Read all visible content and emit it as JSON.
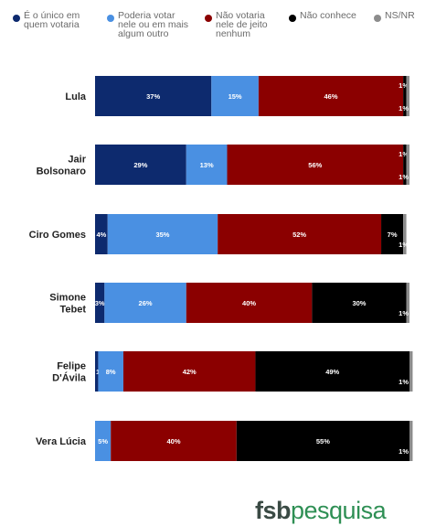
{
  "chart_data": {
    "type": "bar",
    "orientation": "horizontal",
    "stacked": true,
    "xlim": [
      0,
      100
    ],
    "grid": false,
    "legend_position": "top",
    "categories": [
      [
        "Lula"
      ],
      [
        "Jair",
        "Bolsonaro"
      ],
      [
        "Ciro Gomes"
      ],
      [
        "Simone",
        "Tebet"
      ],
      [
        "Felipe",
        "D'Ávila"
      ],
      [
        "Vera Lúcia"
      ]
    ],
    "series": [
      {
        "name": "É o único em quem votaria",
        "name_lines": [
          "É o único em",
          "quem votaria"
        ],
        "color": "#0d2a6e",
        "values": [
          37,
          29,
          4,
          3,
          1,
          0
        ],
        "labels": [
          "37%",
          "29%",
          "4%",
          "3%",
          "1%",
          ""
        ]
      },
      {
        "name": "Poderia votar nele ou em mais algum outro",
        "name_lines": [
          "Poderia votar",
          "nele ou em mais",
          "algum outro"
        ],
        "color": "#4a90e2",
        "values": [
          15,
          13,
          35,
          26,
          8,
          5
        ],
        "labels": [
          "15%",
          "13%",
          "35%",
          "26%",
          "8%",
          "5%"
        ]
      },
      {
        "name": "Não votaria nele de jeito nenhum",
        "name_lines": [
          "Não votaria",
          "nele de jeito",
          "nenhum"
        ],
        "color": "#8b0000",
        "values": [
          46,
          56,
          52,
          40,
          42,
          40
        ],
        "labels": [
          "46%",
          "56%",
          "52%",
          "40%",
          "42%",
          "40%"
        ]
      },
      {
        "name": "Não conhece",
        "name_lines": [
          "Não conhece"
        ],
        "color": "#000000",
        "values": [
          1,
          1,
          7,
          30,
          49,
          55
        ],
        "labels": [
          "1%",
          "1%",
          "7%",
          "30%",
          "49%",
          "55%"
        ]
      },
      {
        "name": "NS/NR",
        "name_lines": [
          "NS/NR"
        ],
        "color": "#8c8c8c",
        "values": [
          1,
          1,
          1,
          1,
          1,
          1
        ],
        "labels": [
          "1%",
          "1%",
          "1%",
          "1%",
          "1%",
          "1%"
        ]
      }
    ]
  },
  "brand": {
    "part1": "fsb",
    "part2": "pesquisa"
  }
}
